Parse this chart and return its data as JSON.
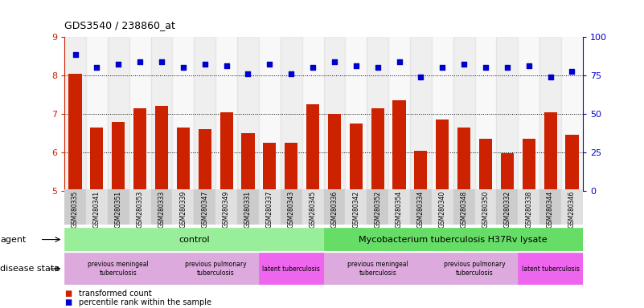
{
  "title": "GDS3540 / 238860_at",
  "samples": [
    "GSM280335",
    "GSM280341",
    "GSM280351",
    "GSM280353",
    "GSM280333",
    "GSM280339",
    "GSM280347",
    "GSM280349",
    "GSM280331",
    "GSM280337",
    "GSM280343",
    "GSM280345",
    "GSM280336",
    "GSM280342",
    "GSM280352",
    "GSM280354",
    "GSM280334",
    "GSM280340",
    "GSM280348",
    "GSM280350",
    "GSM280332",
    "GSM280338",
    "GSM280344",
    "GSM280346"
  ],
  "bar_values": [
    8.05,
    6.65,
    6.8,
    7.15,
    7.2,
    6.65,
    6.6,
    7.05,
    6.5,
    6.25,
    6.25,
    7.25,
    7.0,
    6.75,
    7.15,
    7.35,
    6.05,
    6.85,
    6.65,
    6.35,
    5.98,
    6.35,
    7.05,
    6.45
  ],
  "dot_values": [
    8.55,
    8.2,
    8.3,
    8.35,
    8.35,
    8.2,
    8.3,
    8.25,
    8.05,
    8.3,
    8.05,
    8.2,
    8.35,
    8.25,
    8.2,
    8.35,
    7.95,
    8.2,
    8.3,
    8.2,
    8.2,
    8.25,
    7.95,
    8.1
  ],
  "bar_color": "#cc2200",
  "dot_color": "#0000cc",
  "ylim_left": [
    5,
    9
  ],
  "ylim_right": [
    0,
    100
  ],
  "yticks_left": [
    5,
    6,
    7,
    8,
    9
  ],
  "yticks_right": [
    0,
    25,
    50,
    75,
    100
  ],
  "agent_groups": [
    {
      "label": "control",
      "start": 0,
      "end": 12,
      "color": "#99ee99"
    },
    {
      "label": "Mycobacterium tuberculosis H37Rv lysate",
      "start": 12,
      "end": 24,
      "color": "#66dd66"
    }
  ],
  "disease_groups": [
    {
      "label": "previous meningeal\ntuberculosis",
      "start": 0,
      "end": 5,
      "color": "#ddaadd"
    },
    {
      "label": "previous pulmonary\ntuberculosis",
      "start": 5,
      "end": 9,
      "color": "#ddaadd"
    },
    {
      "label": "latent tuberculosis",
      "start": 9,
      "end": 12,
      "color": "#ee66ee"
    },
    {
      "label": "previous meningeal\ntuberculosis",
      "start": 12,
      "end": 17,
      "color": "#ddaadd"
    },
    {
      "label": "previous pulmonary\ntuberculosis",
      "start": 17,
      "end": 21,
      "color": "#ddaadd"
    },
    {
      "label": "latent tuberculosis",
      "start": 21,
      "end": 24,
      "color": "#ee66ee"
    }
  ],
  "legend_items": [
    {
      "label": "transformed count",
      "color": "#cc2200"
    },
    {
      "label": "percentile rank within the sample",
      "color": "#0000cc"
    }
  ],
  "bg_color": "#ffffff",
  "left_label_color": "#cc2200",
  "right_label_color": "#0000cc",
  "tick_even_color": "#cccccc",
  "tick_odd_color": "#e8e8e8"
}
